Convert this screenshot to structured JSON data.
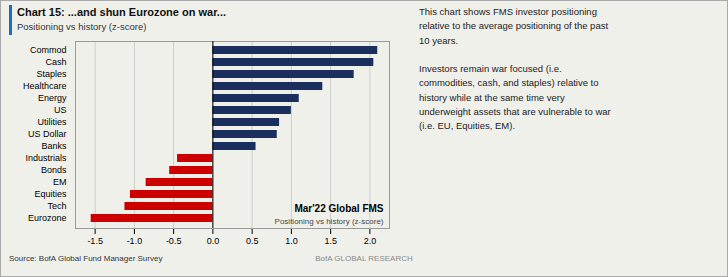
{
  "chart_data": {
    "type": "bar",
    "orientation": "horizontal",
    "title": "Chart 15: ...and shun Eurozone on war...",
    "subtitle": "Positioning vs history (z-score)",
    "categories": [
      "Commod",
      "Cash",
      "Staples",
      "Healthcare",
      "Energy",
      "US",
      "Utilities",
      "US Dollar",
      "Banks",
      "Industrials",
      "Bonds",
      "EM",
      "Equities",
      "Tech",
      "Eurozone"
    ],
    "values": [
      2.1,
      2.05,
      1.8,
      1.4,
      1.1,
      1.0,
      0.85,
      0.82,
      0.55,
      -0.45,
      -0.55,
      -0.85,
      -1.05,
      -1.12,
      -1.55
    ],
    "colors": [
      "#1a2f5e",
      "#1a2f5e",
      "#1a2f5e",
      "#1a2f5e",
      "#1a2f5e",
      "#1a2f5e",
      "#1a2f5e",
      "#1a2f5e",
      "#1a2f5e",
      "#cc0000",
      "#cc0000",
      "#cc0000",
      "#cc0000",
      "#cc0000",
      "#cc0000"
    ],
    "xlim": [
      -1.75,
      2.25
    ],
    "xticks": [
      -1.5,
      {
        "value": -1,
        "label": "-1.0"
      },
      -0.5,
      {
        "value": 0,
        "label": "0.0"
      },
      0.5,
      {
        "value": 1,
        "label": "1.0"
      },
      1.5,
      {
        "value": 2,
        "label": "2.0"
      }
    ],
    "grid": true,
    "annotations": [
      "Mar'22 Global FMS",
      "Positioning vs history (z-score)"
    ],
    "description": "This chart shows FMS investor positioning\nrelative to the average positioning of the past\n10 years.\n\nInvestors remain war focused (i.e.\ncommodities, cash, and staples) relative to\nhistory while at the same time very\nunderweight assets that are vulnerable to war\n(i.e. EU, Equities, EM).",
    "source": "Source: BofA Global Fund Manager Survey",
    "footer": "BofA GLOBAL RESEARCH"
  }
}
